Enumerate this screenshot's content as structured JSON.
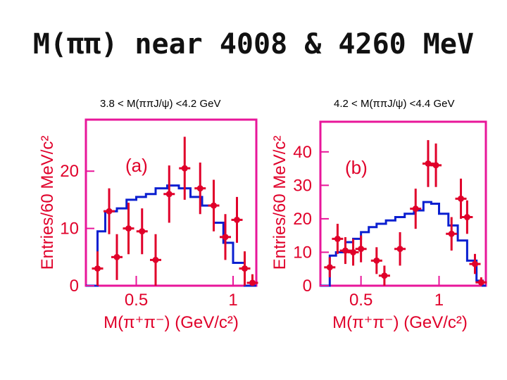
{
  "title": "M(ππ) near 4008 & 4260 MeV",
  "chart_data": [
    {
      "type": "histogram-with-errorbars",
      "cut_label": "3.8 < M(ππJ/ψ) <4.2 GeV",
      "panel_label": "(a)",
      "xlabel": "M(π⁺π⁻) (GeV/c²)",
      "ylabel": "Entries/60 MeV/c²",
      "xlim": [
        0.24,
        1.12
      ],
      "ylim": [
        0,
        29
      ],
      "xticks": [
        {
          "value": 0.5,
          "label": "0.5"
        },
        {
          "value": 1.0,
          "label": "1"
        }
      ],
      "yticks": [
        {
          "value": 0,
          "label": "0"
        },
        {
          "value": 10,
          "label": "10"
        },
        {
          "value": 20,
          "label": "20"
        }
      ],
      "colors": {
        "frame": "#e8169a",
        "data": "#e0002a",
        "histogram": "#0a1fd0",
        "text": "#e0002a"
      },
      "data_points": [
        {
          "x": 0.3,
          "y": 3.0,
          "err": 3.0
        },
        {
          "x": 0.36,
          "y": 13.0,
          "err": 4.0
        },
        {
          "x": 0.4,
          "y": 5.0,
          "err": 4.0
        },
        {
          "x": 0.46,
          "y": 10.0,
          "err": 4.5
        },
        {
          "x": 0.53,
          "y": 9.5,
          "err": 4.0
        },
        {
          "x": 0.6,
          "y": 4.5,
          "err": 4.5
        },
        {
          "x": 0.67,
          "y": 16.0,
          "err": 5.0
        },
        {
          "x": 0.75,
          "y": 20.5,
          "err": 5.5
        },
        {
          "x": 0.83,
          "y": 17.0,
          "err": 4.5
        },
        {
          "x": 0.9,
          "y": 14.0,
          "err": 4.5
        },
        {
          "x": 0.96,
          "y": 8.5,
          "err": 4.0
        },
        {
          "x": 1.02,
          "y": 11.5,
          "err": 4.0
        },
        {
          "x": 1.06,
          "y": 3.0,
          "err": 3.0
        },
        {
          "x": 1.1,
          "y": 0.5,
          "err": 1.5
        }
      ],
      "histogram": {
        "edges": [
          0.24,
          0.3,
          0.34,
          0.4,
          0.45,
          0.5,
          0.55,
          0.6,
          0.66,
          0.72,
          0.78,
          0.84,
          0.9,
          0.95,
          1.0,
          1.06,
          1.1,
          1.12
        ],
        "values": [
          0,
          9.5,
          13,
          13.5,
          15,
          15.5,
          16,
          17,
          17.5,
          17,
          15.5,
          14,
          11,
          7.5,
          4,
          0,
          0
        ]
      }
    },
    {
      "type": "histogram-with-errorbars",
      "cut_label": "4.2 < M(ππJ/ψ) <4.4 GeV",
      "panel_label": "(b)",
      "xlabel": "M(π⁺π⁻) (GeV/c²)",
      "ylabel": "Entries/60 MeV/c²",
      "xlim": [
        0.24,
        1.3
      ],
      "ylim": [
        0,
        49
      ],
      "xticks": [
        {
          "value": 0.5,
          "label": "0.5"
        },
        {
          "value": 1.0,
          "label": "1"
        }
      ],
      "yticks": [
        {
          "value": 0,
          "label": "0"
        },
        {
          "value": 10,
          "label": "10"
        },
        {
          "value": 20,
          "label": "20"
        },
        {
          "value": 30,
          "label": "30"
        },
        {
          "value": 40,
          "label": "40"
        }
      ],
      "colors": {
        "frame": "#e8169a",
        "data": "#e0002a",
        "histogram": "#0a1fd0",
        "text": "#e0002a"
      },
      "data_points": [
        {
          "x": 0.3,
          "y": 5.5,
          "err": 3.0
        },
        {
          "x": 0.35,
          "y": 14.0,
          "err": 4.5
        },
        {
          "x": 0.4,
          "y": 10.5,
          "err": 4.0
        },
        {
          "x": 0.45,
          "y": 10.0,
          "err": 4.0
        },
        {
          "x": 0.5,
          "y": 11.0,
          "err": 4.0
        },
        {
          "x": 0.6,
          "y": 7.5,
          "err": 4.0
        },
        {
          "x": 0.65,
          "y": 3.0,
          "err": 3.0
        },
        {
          "x": 0.75,
          "y": 11.0,
          "err": 5.0
        },
        {
          "x": 0.85,
          "y": 23.0,
          "err": 6.0
        },
        {
          "x": 0.93,
          "y": 36.5,
          "err": 7.0
        },
        {
          "x": 0.98,
          "y": 36.0,
          "err": 6.5
        },
        {
          "x": 1.08,
          "y": 15.5,
          "err": 5.0
        },
        {
          "x": 1.14,
          "y": 26.0,
          "err": 6.0
        },
        {
          "x": 1.18,
          "y": 20.5,
          "err": 5.0
        },
        {
          "x": 1.23,
          "y": 6.5,
          "err": 3.0
        },
        {
          "x": 1.27,
          "y": 1.0,
          "err": 1.5
        }
      ],
      "histogram": {
        "edges": [
          0.24,
          0.3,
          0.34,
          0.4,
          0.45,
          0.5,
          0.55,
          0.6,
          0.66,
          0.72,
          0.78,
          0.84,
          0.9,
          0.95,
          1.0,
          1.06,
          1.12,
          1.18,
          1.24,
          1.28,
          1.3
        ],
        "values": [
          0,
          9,
          10,
          13,
          14,
          16,
          17.5,
          18.5,
          19.5,
          20.5,
          21.5,
          22.5,
          25,
          24.5,
          21.5,
          18,
          13.5,
          7.5,
          1.5,
          0
        ]
      }
    }
  ]
}
